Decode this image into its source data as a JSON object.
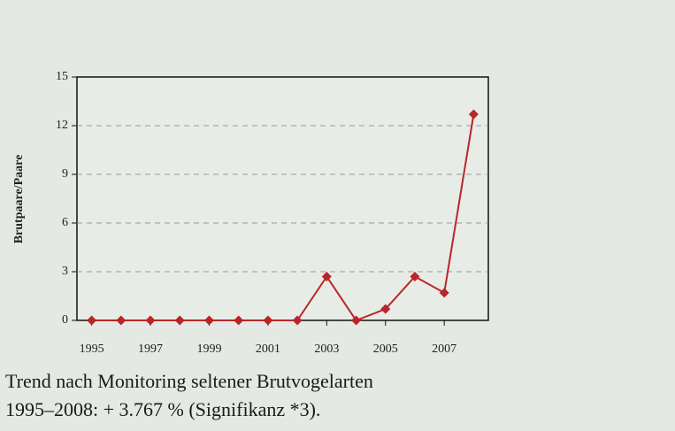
{
  "chart_data": {
    "type": "line",
    "y_label": "Brutpaare/Paare",
    "x": [
      1995,
      1996,
      1997,
      1998,
      1999,
      2000,
      2001,
      2002,
      2003,
      2004,
      2005,
      2006,
      2007,
      2008
    ],
    "series": [
      {
        "color": "#b8262a",
        "values": [
          0,
          0,
          0,
          0,
          0,
          0,
          0,
          0,
          2.7,
          0,
          0.7,
          2.7,
          1.7,
          12.7
        ]
      }
    ],
    "xlim": [
      1994.5,
      2008.5
    ],
    "xticks": [
      1995,
      1997,
      1999,
      2001,
      2003,
      2005,
      2007
    ],
    "ylim": [
      0,
      15
    ],
    "yticks": [
      0,
      3,
      6,
      9,
      12,
      15
    ],
    "grid": true,
    "caption": [
      "Trend nach Monitoring seltener Brutvogelarten",
      "1995–2008: + 3.767 % (Signifikanz *3)."
    ]
  }
}
